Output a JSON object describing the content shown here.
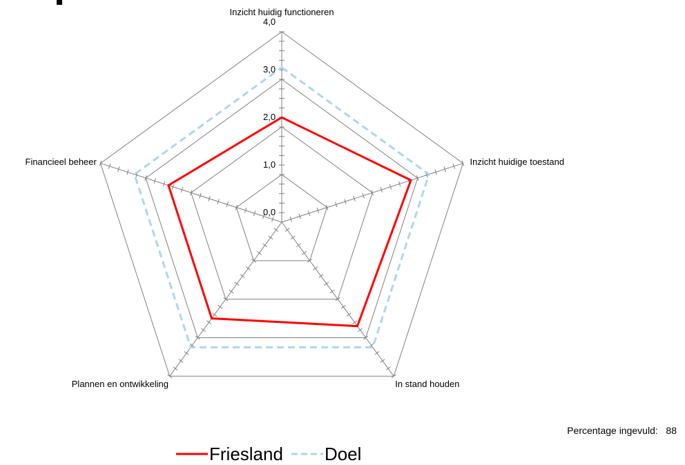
{
  "chart_data": {
    "type": "radar",
    "axes": [
      "Inzicht huidig functioneren",
      "Inzicht huidige toestand",
      "In stand houden",
      "Plannen en ontwikkeling",
      "Financieel beheer"
    ],
    "rlim": [
      0,
      4
    ],
    "r_ticks": [
      "0,0",
      "1,0",
      "2,0",
      "3,0",
      "4,0"
    ],
    "series": [
      {
        "name": "Friesland",
        "values": [
          2.2,
          2.85,
          2.7,
          2.5,
          2.5
        ],
        "color": "#ff0000",
        "style": "solid"
      },
      {
        "name": "Doel",
        "values": [
          3.25,
          3.25,
          3.25,
          3.25,
          3.25
        ],
        "color": "#add8e6",
        "style": "dashed"
      }
    ],
    "grid": true,
    "legend_position": "bottom"
  },
  "footnote": {
    "label": "Percentage ingevuld:",
    "value": "88"
  },
  "legend": {
    "items": [
      {
        "label": "Friesland",
        "color": "#ff0000",
        "style": "solid"
      },
      {
        "label": "Doel",
        "color": "#add8e6",
        "style": "dashed"
      }
    ]
  }
}
